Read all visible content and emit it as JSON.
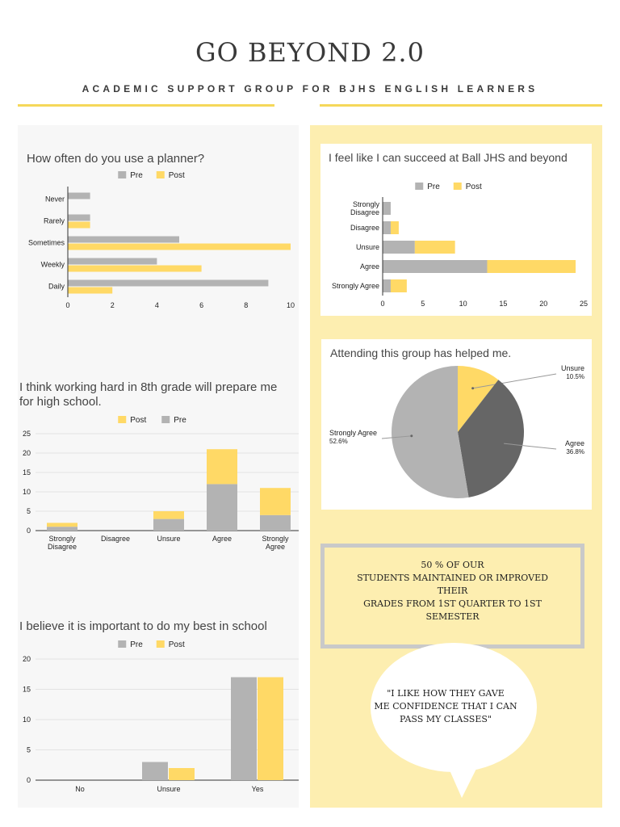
{
  "header": {
    "title": "GO BEYOND 2.0",
    "subtitle": "ACADEMIC SUPPORT GROUP FOR BJHS ENGLISH LEARNERS"
  },
  "colors": {
    "pre": "#b3b3b3",
    "post": "#ffd966",
    "agree_dark": "#666666",
    "accent": "#f5d85a"
  },
  "chart_data": [
    {
      "id": "planner",
      "type": "bar",
      "orientation": "horizontal",
      "title": "How often do you use a planner?",
      "categories": [
        "Never",
        "Rarely",
        "Sometimes",
        "Weekly",
        "Daily"
      ],
      "series": [
        {
          "name": "Pre",
          "values": [
            1,
            1,
            5,
            4,
            9
          ]
        },
        {
          "name": "Post",
          "values": [
            0,
            1,
            10,
            6,
            2
          ]
        }
      ],
      "xlim": [
        0,
        10
      ],
      "ticks": [
        0,
        2,
        4,
        6,
        8,
        10
      ],
      "legend": "top"
    },
    {
      "id": "succeed",
      "type": "bar",
      "orientation": "horizontal",
      "stacked": true,
      "title": "I feel like I can succeed at Ball JHS and beyond",
      "categories": [
        "Strongly Disagree",
        "Disagree",
        "Unsure",
        "Agree",
        "Strongly Agree"
      ],
      "series": [
        {
          "name": "Pre",
          "values": [
            1,
            1,
            4,
            13,
            1
          ]
        },
        {
          "name": "Post",
          "values": [
            0,
            1,
            5,
            11,
            2
          ]
        }
      ],
      "xlim": [
        0,
        25
      ],
      "ticks": [
        0,
        5,
        10,
        15,
        20,
        25
      ],
      "legend": "top"
    },
    {
      "id": "hardwork",
      "type": "bar",
      "stacked": true,
      "title": "I think working hard in 8th grade will prepare me for high school.",
      "categories": [
        "Strongly Disagree",
        "Disagree",
        "Unsure",
        "Agree",
        "Strongly Agree"
      ],
      "series": [
        {
          "name": "Post",
          "values": [
            1,
            0,
            2,
            9,
            7
          ]
        },
        {
          "name": "Pre",
          "values": [
            1,
            0,
            3,
            12,
            4
          ]
        }
      ],
      "ylim": [
        0,
        25
      ],
      "ticks": [
        0,
        5,
        10,
        15,
        20,
        25
      ],
      "legend": "top"
    },
    {
      "id": "bestschool",
      "type": "bar",
      "title": "I believe it is important to do my best in school",
      "categories": [
        "No",
        "Unsure",
        "Yes"
      ],
      "series": [
        {
          "name": "Pre",
          "values": [
            0,
            3,
            17
          ]
        },
        {
          "name": "Post",
          "values": [
            0,
            2,
            17
          ]
        }
      ],
      "ylim": [
        0,
        20
      ],
      "ticks": [
        0,
        5,
        10,
        15,
        20
      ],
      "legend": "top"
    },
    {
      "id": "helped",
      "type": "pie",
      "title": "Attending this group has helped me.",
      "slices": [
        {
          "label": "Unsure",
          "value": 10.5,
          "pct": "10.5%"
        },
        {
          "label": "Agree",
          "value": 36.8,
          "pct": "36.8%"
        },
        {
          "label": "Strongly Agree",
          "value": 52.6,
          "pct": "52.6%"
        }
      ]
    }
  ],
  "stat_box": {
    "lines": [
      "50 % OF OUR",
      "STUDENTS MAINTAINED OR IMPROVED",
      "THEIR",
      "GRADES FROM 1ST QUARTER TO 1ST",
      "SEMESTER"
    ]
  },
  "quote": {
    "lines": [
      "\"I LIKE HOW THEY GAVE",
      "ME CONFIDENCE THAT I CAN",
      "PASS MY CLASSES\""
    ]
  }
}
